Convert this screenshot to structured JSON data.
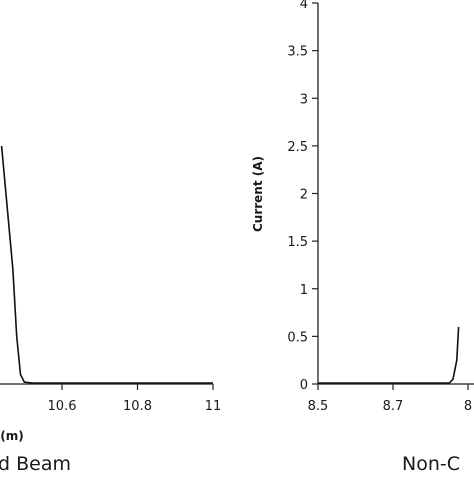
{
  "chart_data": [
    {
      "type": "line",
      "panel": "left",
      "xlabel": "(m)",
      "ylabel": "",
      "caption": "d Beam",
      "xlim": [
        10.4,
        11
      ],
      "ylim": [
        0,
        4
      ],
      "x_ticks": [
        "10.6",
        "10.8",
        "11"
      ],
      "y_ticks": [],
      "grid": false,
      "series": [
        {
          "x": [
            10.44,
            10.47,
            10.48,
            10.49,
            10.5,
            10.52,
            11
          ],
          "y": [
            2.5,
            1.2,
            0.5,
            0.1,
            0.02,
            0.01,
            0.01
          ]
        }
      ]
    },
    {
      "type": "line",
      "panel": "right",
      "xlabel": "",
      "ylabel": "Current (A)",
      "caption": "Non-C",
      "xlim": [
        8.5,
        8.9
      ],
      "ylim": [
        0,
        4
      ],
      "x_ticks": [
        "8.5",
        "8.7",
        "8"
      ],
      "y_ticks": [
        "0",
        "0.5",
        "1",
        "1.5",
        "2",
        "2.5",
        "3",
        "3.5",
        "4"
      ],
      "grid": false,
      "series": [
        {
          "x": [
            8.5,
            8.85,
            8.86,
            8.87,
            8.875
          ],
          "y": [
            0.01,
            0.01,
            0.05,
            0.25,
            0.6
          ]
        }
      ]
    }
  ]
}
